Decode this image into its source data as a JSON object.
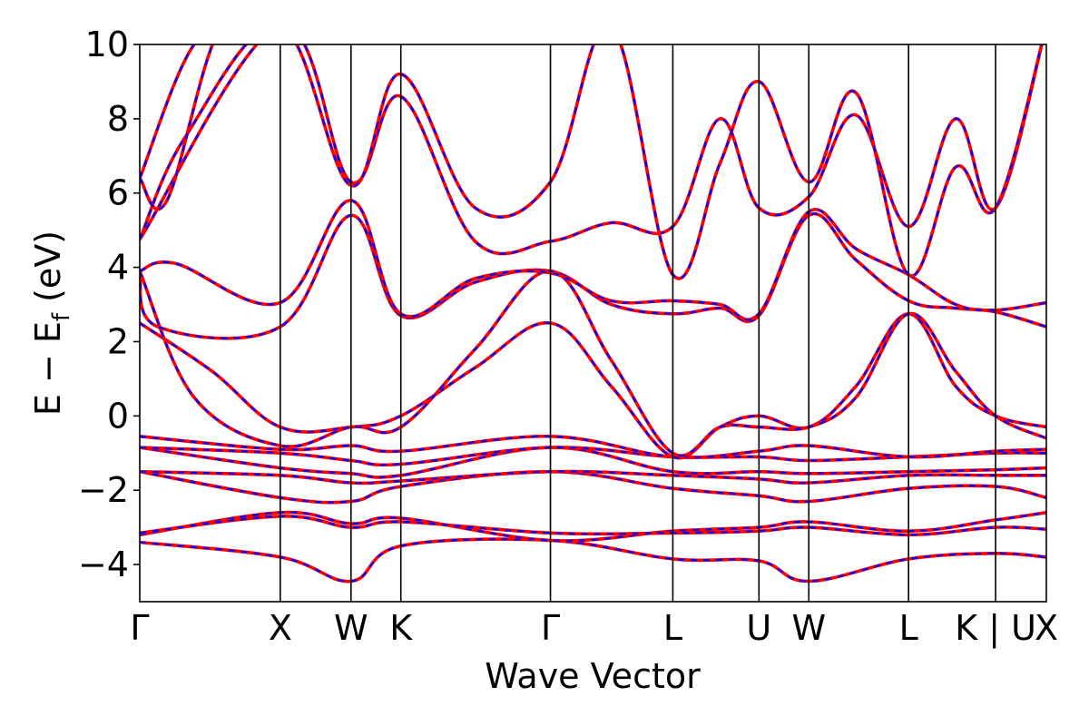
{
  "chart_data": {
    "type": "line",
    "title": "",
    "xlabel": "Wave Vector",
    "ylabel": {
      "main": "E − E",
      "sub": "f",
      "tail": " (eV)"
    },
    "ylim": [
      -5,
      10
    ],
    "yticks": [
      {
        "value": -4,
        "label": "−4"
      },
      {
        "value": -2,
        "label": "−2"
      },
      {
        "value": 0,
        "label": "0"
      },
      {
        "value": 2,
        "label": "2"
      },
      {
        "value": 4,
        "label": "4"
      },
      {
        "value": 6,
        "label": "6"
      },
      {
        "value": 8,
        "label": "8"
      },
      {
        "value": 10,
        "label": "10"
      }
    ],
    "xlim": [
      0,
      1
    ],
    "kpoints": [
      {
        "label": "Γ",
        "x": 0.0
      },
      {
        "label": "X",
        "x": 0.155
      },
      {
        "label": "W",
        "x": 0.233
      },
      {
        "label": "K",
        "x": 0.288
      },
      {
        "label": "Γ",
        "x": 0.453
      },
      {
        "label": "L",
        "x": 0.588
      },
      {
        "label": "U",
        "x": 0.683
      },
      {
        "label": "W",
        "x": 0.738
      },
      {
        "label": "L",
        "x": 0.848
      },
      {
        "label": "K | U",
        "x": 0.944
      },
      {
        "label": "X",
        "x": 1.0
      }
    ],
    "grid": false,
    "legend": "none",
    "colors": {
      "band_outer": "#ff0000",
      "band_inner": "#0000ff",
      "kline": "#000000"
    },
    "series": [
      {
        "x": [
          0,
          0.155,
          0.233,
          0.288,
          0.453,
          0.588,
          0.683,
          0.738,
          0.848,
          0.944,
          1.0
        ],
        "y": [
          -3.4,
          -3.8,
          -4.45,
          -3.5,
          -3.35,
          -3.85,
          -3.9,
          -4.45,
          -3.85,
          -3.7,
          -3.8
        ]
      },
      {
        "x": [
          0,
          0.155,
          0.233,
          0.288,
          0.453,
          0.588,
          0.683,
          0.738,
          0.848,
          0.944,
          1.0
        ],
        "y": [
          -3.2,
          -2.6,
          -2.9,
          -2.75,
          -3.35,
          -3.1,
          -3.0,
          -2.85,
          -3.1,
          -2.8,
          -2.6
        ]
      },
      {
        "x": [
          0,
          0.155,
          0.233,
          0.288,
          0.453,
          0.588,
          0.683,
          0.738,
          0.848,
          0.944,
          1.0
        ],
        "y": [
          -3.15,
          -2.7,
          -3.0,
          -2.85,
          -3.15,
          -3.15,
          -3.1,
          -3.0,
          -3.2,
          -3.0,
          -3.05
        ]
      },
      {
        "x": [
          0,
          0.155,
          0.233,
          0.288,
          0.453,
          0.588,
          0.683,
          0.738,
          0.848,
          0.944,
          1.0
        ],
        "y": [
          -1.5,
          -2.2,
          -2.3,
          -1.9,
          -1.5,
          -1.95,
          -2.15,
          -2.3,
          -1.95,
          -1.9,
          -2.2
        ]
      },
      {
        "x": [
          0,
          0.155,
          0.233,
          0.288,
          0.453,
          0.588,
          0.683,
          0.738,
          0.848,
          0.944,
          1.0
        ],
        "y": [
          -1.5,
          -1.6,
          -1.8,
          -1.75,
          -1.5,
          -1.6,
          -1.7,
          -1.8,
          -1.6,
          -1.6,
          -1.6
        ]
      },
      {
        "x": [
          0,
          0.155,
          0.233,
          0.288,
          0.453,
          0.588,
          0.683,
          0.738,
          0.848,
          0.944,
          1.0
        ],
        "y": [
          -0.85,
          -1.4,
          -1.55,
          -1.6,
          -0.85,
          -1.5,
          -1.5,
          -1.55,
          -1.5,
          -1.45,
          -1.4
        ]
      },
      {
        "x": [
          0,
          0.155,
          0.233,
          0.288,
          0.453,
          0.588,
          0.683,
          0.738,
          0.848,
          0.944,
          1.0
        ],
        "y": [
          -0.85,
          -1.0,
          -1.2,
          -1.3,
          -0.85,
          -1.1,
          -1.1,
          -1.2,
          -1.1,
          -1.0,
          -1.0
        ]
      },
      {
        "x": [
          0,
          0.155,
          0.233,
          0.288,
          0.453,
          0.588,
          0.683,
          0.738,
          0.848,
          0.944,
          1.0
        ],
        "y": [
          -0.55,
          -0.9,
          -0.8,
          -0.95,
          -0.55,
          -1.1,
          -0.95,
          -0.8,
          -1.1,
          -0.95,
          -0.9
        ]
      },
      {
        "x": [
          0,
          0.08,
          0.155,
          0.233,
          0.288,
          0.37,
          0.453,
          0.52,
          0.588,
          0.64,
          0.683,
          0.738,
          0.79,
          0.848,
          0.9,
          0.944,
          1.0
        ],
        "y": [
          2.5,
          1.2,
          -0.3,
          -0.3,
          0.0,
          1.3,
          2.5,
          0.8,
          -1.1,
          -0.3,
          0.0,
          -0.3,
          0.8,
          2.75,
          0.8,
          0.0,
          -0.3
        ]
      },
      {
        "x": [
          0,
          0.06,
          0.155,
          0.233,
          0.288,
          0.37,
          0.453,
          0.52,
          0.588,
          0.64,
          0.683,
          0.738,
          0.79,
          0.848,
          0.9,
          0.944,
          1.0
        ],
        "y": [
          3.9,
          0.5,
          -0.8,
          -0.3,
          -0.3,
          1.8,
          3.9,
          1.5,
          -1.0,
          -0.3,
          -0.3,
          -0.3,
          0.5,
          2.75,
          1.2,
          0.0,
          -0.6
        ]
      },
      {
        "x": [
          0,
          0.02,
          0.155,
          0.233,
          0.288,
          0.37,
          0.453,
          0.52,
          0.588,
          0.64,
          0.683,
          0.738,
          0.79,
          0.848,
          0.9,
          0.944,
          1.0
        ],
        "y": [
          3.9,
          2.4,
          2.4,
          5.4,
          2.7,
          3.6,
          3.9,
          3.0,
          2.75,
          2.9,
          2.7,
          5.4,
          4.2,
          3.1,
          2.9,
          2.8,
          2.4
        ]
      },
      {
        "x": [
          0,
          0.04,
          0.155,
          0.233,
          0.288,
          0.37,
          0.453,
          0.52,
          0.588,
          0.64,
          0.683,
          0.738,
          0.79,
          0.848,
          0.9,
          0.944,
          1.0
        ],
        "y": [
          3.9,
          4.1,
          3.05,
          5.8,
          2.75,
          3.7,
          3.85,
          3.1,
          3.1,
          3.0,
          2.75,
          5.5,
          4.5,
          3.8,
          3.0,
          2.85,
          3.05
        ]
      },
      {
        "x": [
          0,
          0.155,
          0.233,
          0.288,
          0.37,
          0.453,
          0.52,
          0.588,
          0.64,
          0.683,
          0.738,
          0.79,
          0.848,
          0.9,
          0.944,
          1.0
        ],
        "y": [
          4.75,
          10.5,
          6.3,
          8.6,
          4.7,
          4.7,
          5.2,
          5.1,
          8.0,
          5.6,
          5.9,
          8.1,
          5.1,
          8.0,
          5.6,
          10.5
        ]
      },
      {
        "x": [
          0,
          0.05,
          0.155,
          0.233,
          0.288,
          0.37,
          0.453,
          0.52,
          0.588,
          0.64,
          0.683,
          0.738,
          0.79,
          0.848,
          0.9,
          0.944,
          1.0
        ],
        "y": [
          4.75,
          7.5,
          10.5,
          6.2,
          9.2,
          5.6,
          6.3,
          10.5,
          3.8,
          6.8,
          9.0,
          6.3,
          8.7,
          3.8,
          6.7,
          5.6,
          10.5
        ]
      },
      {
        "x": [
          0,
          0.03,
          0.09,
          0.155
        ],
        "y": [
          6.4,
          5.8,
          10.5,
          10.5
        ]
      },
      {
        "x": [
          0,
          0.06,
          0.12
        ],
        "y": [
          6.4,
          10.0,
          10.5
        ]
      }
    ]
  }
}
